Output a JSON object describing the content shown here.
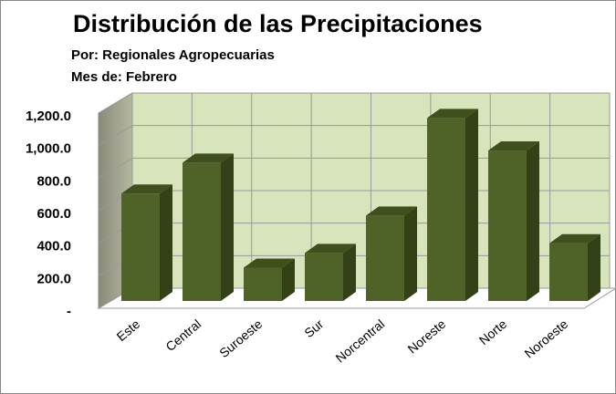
{
  "chart_data": {
    "type": "bar3d",
    "title": "Distribución de las Precipitaciones",
    "subtitle": "Por: Regionales Agropecuarias",
    "subtitle2": "Mes de: Febrero",
    "categories": [
      "Este",
      "Central",
      "Suroeste",
      "Sur",
      "Norcentral",
      "Noreste",
      "Norte",
      "Noroeste"
    ],
    "values": [
      660,
      850,
      205,
      295,
      525,
      1125,
      925,
      355
    ],
    "color": "#4f6228",
    "ylim": [
      0,
      1200
    ],
    "yticks": [
      {
        "value": 0,
        "label": "-"
      },
      {
        "value": 200,
        "label": "200.0"
      },
      {
        "value": 400,
        "label": "400.0"
      },
      {
        "value": 600,
        "label": "600.0"
      },
      {
        "value": 800,
        "label": "800.0"
      },
      {
        "value": 1000,
        "label": "1,000.0"
      },
      {
        "value": 1200,
        "label": "1,200.0"
      }
    ],
    "grid": true
  }
}
